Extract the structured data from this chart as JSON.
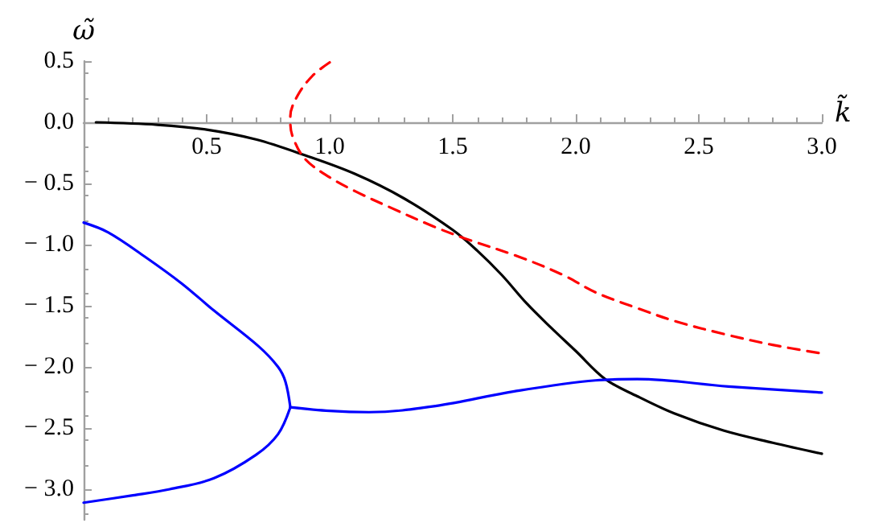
{
  "chart_data": {
    "type": "line",
    "xlabel": "k̃",
    "ylabel": "ω̃",
    "xlim": [
      0,
      3
    ],
    "ylim": [
      -3.25,
      0.5
    ],
    "marker": "none",
    "xticks": [
      {
        "value": 0.5,
        "label": "0.5"
      },
      {
        "value": 1,
        "label": "1.0"
      },
      {
        "value": 1.5,
        "label": "1.5"
      },
      {
        "value": 2,
        "label": "2.0"
      },
      {
        "value": 2.5,
        "label": "2.5"
      },
      {
        "value": 3,
        "label": "3.0"
      }
    ],
    "yticks": [
      {
        "value": 0.5,
        "label": "0.5"
      },
      {
        "value": 0,
        "label": "0.0"
      },
      {
        "value": -0.5,
        "label": "− 0.5"
      },
      {
        "value": -1,
        "label": "− 1.0"
      },
      {
        "value": -1.5,
        "label": "− 1.5"
      },
      {
        "value": -2,
        "label": "− 2.0"
      },
      {
        "value": -2.5,
        "label": "− 2.5"
      },
      {
        "value": -3,
        "label": "− 3.0"
      }
    ],
    "series": [
      {
        "color": "#000000",
        "line_style": "solid",
        "x": [
          0.05,
          0.3,
          0.5,
          0.7,
          0.9,
          1.1,
          1.3,
          1.5,
          1.6,
          1.7,
          1.8,
          1.9,
          2.0,
          2.12,
          2.25,
          2.4,
          2.6,
          2.8,
          3.0
        ],
        "values": [
          0,
          -0.02,
          -0.06,
          -0.14,
          -0.27,
          -0.42,
          -0.62,
          -0.88,
          -1.05,
          -1.25,
          -1.48,
          -1.68,
          -1.87,
          -2.1,
          -2.24,
          -2.38,
          -2.52,
          -2.62,
          -2.71
        ]
      },
      {
        "color": "#ff0000",
        "line_style": "dashed",
        "x": [
          1.0,
          0.93,
          0.87,
          0.84,
          0.84,
          0.85,
          0.9,
          1.0,
          1.1,
          1.25,
          1.42,
          1.55,
          1.77,
          1.95,
          2.08,
          2.25,
          2.41,
          2.6,
          2.8,
          3.0
        ],
        "values": [
          0.49,
          0.38,
          0.22,
          0.05,
          0,
          -0.12,
          -0.3,
          -0.45,
          -0.56,
          -0.7,
          -0.85,
          -0.95,
          -1.1,
          -1.25,
          -1.39,
          -1.52,
          -1.63,
          -1.73,
          -1.82,
          -1.89
        ]
      },
      {
        "color": "#0000ff",
        "line_style": "solid",
        "x": [
          0.0,
          0.1,
          0.25,
          0.4,
          0.53,
          0.71,
          0.79,
          0.82,
          0.84
        ],
        "values": [
          -0.82,
          -0.9,
          -1.1,
          -1.32,
          -1.54,
          -1.83,
          -2.0,
          -2.12,
          -2.33
        ]
      },
      {
        "color": "#0000ff",
        "line_style": "solid",
        "x": [
          0.84,
          0.79,
          0.7,
          0.53,
          0.35,
          0.2,
          0.0
        ],
        "values": [
          -2.33,
          -2.55,
          -2.72,
          -2.91,
          -3.0,
          -3.05,
          -3.11
        ]
      },
      {
        "color": "#0000ff",
        "line_style": "solid",
        "x": [
          0.84,
          1.0,
          1.16,
          1.43,
          1.75,
          2.08,
          2.25,
          2.62,
          3.0
        ],
        "values": [
          -2.33,
          -2.36,
          -2.37,
          -2.32,
          -2.2,
          -2.11,
          -2.1,
          -2.16,
          -2.21
        ]
      }
    ]
  }
}
